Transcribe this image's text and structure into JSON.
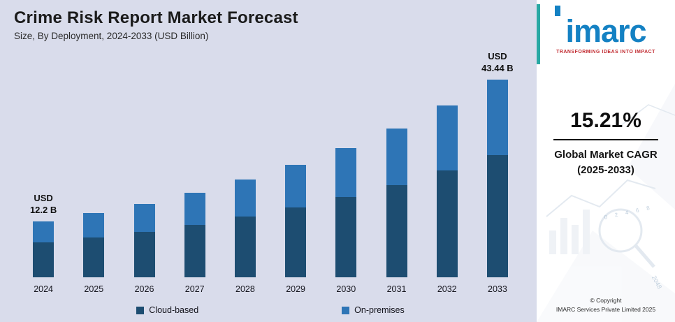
{
  "header": {
    "title": "Crime Risk Report Market Forecast",
    "subtitle": "Size, By Deployment, 2024-2033 (USD Billion)"
  },
  "chart_data": {
    "type": "bar",
    "stacked": true,
    "title": "Crime Risk Report Market Forecast",
    "subtitle": "Size, By Deployment, 2024-2033 (USD Billion)",
    "categories": [
      "2024",
      "2025",
      "2026",
      "2027",
      "2028",
      "2029",
      "2030",
      "2031",
      "2032",
      "2033"
    ],
    "series": [
      {
        "name": "Cloud-based",
        "color": "#1d4d71",
        "values": [
          7.6,
          8.7,
          10.0,
          11.5,
          13.3,
          15.3,
          17.6,
          20.3,
          23.4,
          26.9
        ]
      },
      {
        "name": "On-premises",
        "color": "#2e75b6",
        "values": [
          4.6,
          5.3,
          6.1,
          7.1,
          8.1,
          9.4,
          10.8,
          12.4,
          14.3,
          16.5
        ]
      }
    ],
    "annotations": [
      {
        "category": "2024",
        "lines": [
          "USD",
          "12.2 B"
        ]
      },
      {
        "category": "2033",
        "lines": [
          "USD",
          "43.44 B"
        ]
      }
    ],
    "xlabel": "",
    "ylabel": "",
    "ylim": [
      0,
      46
    ],
    "grid": false,
    "legend_position": "bottom"
  },
  "sidebar": {
    "logo_text": "imarc",
    "tagline": "TRANSFORMING IDEAS INTO IMPACT",
    "cagr_value": "15.21%",
    "cagr_label_line1": "Global Market CAGR",
    "cagr_label_line2": "(2025-2033)",
    "copyright_line1": "© Copyright",
    "copyright_line2": "IMARC Services Private Limited 2025",
    "decor": {
      "tick_labels": [
        "0",
        "2",
        "4",
        "6",
        "8"
      ],
      "watermark_number": "2048"
    }
  }
}
